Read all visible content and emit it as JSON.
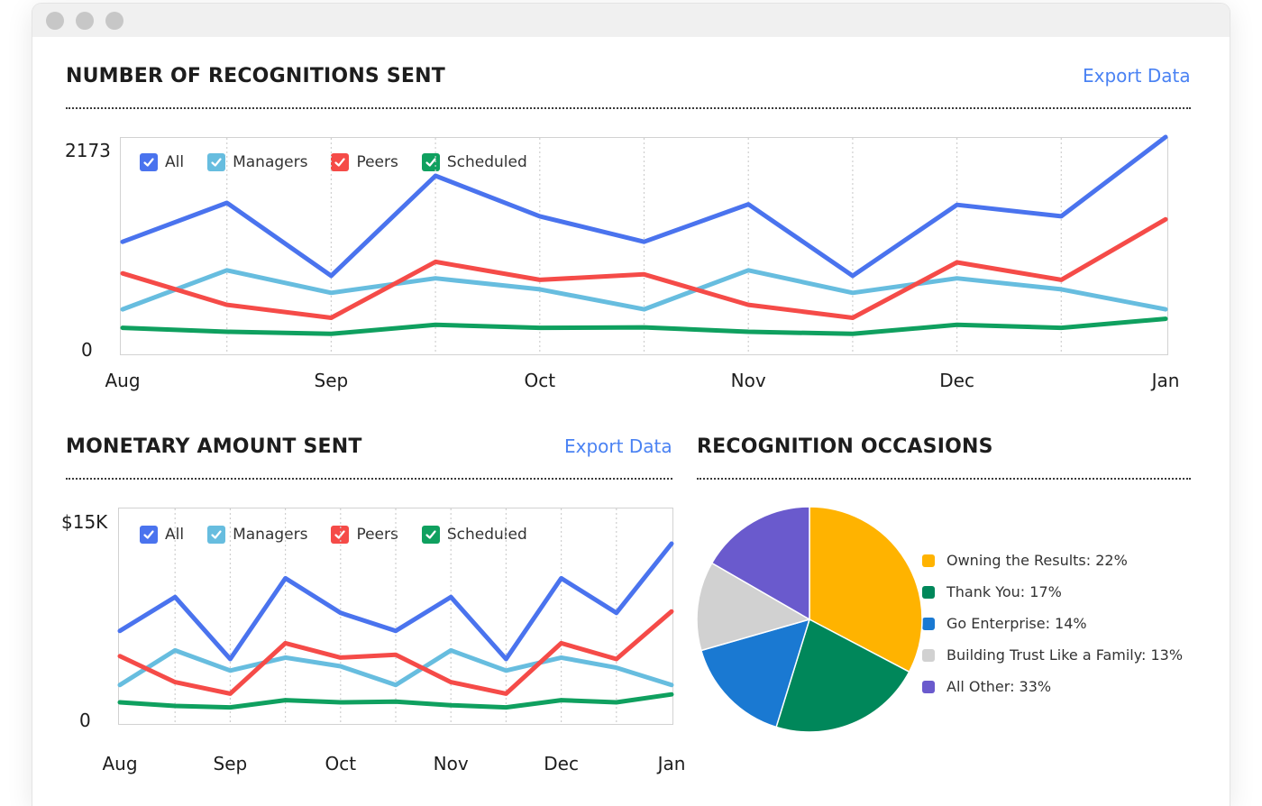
{
  "window": {
    "controls": [
      "close",
      "minimize",
      "maximize"
    ]
  },
  "colors": {
    "all": "#4a73ee",
    "managers": "#67bddf",
    "peers": "#f54b48",
    "scheduled": "#0fa05f",
    "link": "#4a82f3"
  },
  "recognitions": {
    "title": "NUMBER OF RECOGNITIONS SENT",
    "export_label": "Export Data",
    "y_max_label": "2173",
    "y_min_label": "0",
    "legend": [
      {
        "key": "all",
        "label": "All"
      },
      {
        "key": "managers",
        "label": "Managers"
      },
      {
        "key": "peers",
        "label": "Peers"
      },
      {
        "key": "scheduled",
        "label": "Scheduled"
      }
    ]
  },
  "monetary": {
    "title": "MONETARY AMOUNT SENT",
    "export_label": "Export Data",
    "y_max_label": "$15K",
    "y_min_label": "0",
    "legend": [
      {
        "key": "all",
        "label": "All"
      },
      {
        "key": "managers",
        "label": "Managers"
      },
      {
        "key": "peers",
        "label": "Peers"
      },
      {
        "key": "scheduled",
        "label": "Scheduled"
      }
    ]
  },
  "occasions": {
    "title": "RECOGNITION OCCASIONS",
    "legend": [
      {
        "label": "Owning the Results: 22%",
        "color": "#ffb300"
      },
      {
        "label": "Thank You: 17%",
        "color": "#00875a"
      },
      {
        "label": "Go Enterprise: 14%",
        "color": "#1a79d2"
      },
      {
        "label": "Building Trust Like a Family: 13%",
        "color": "#d1d1d1"
      },
      {
        "label": "All Other: 33%",
        "color": "#6a5acd"
      }
    ]
  },
  "chart_data": [
    {
      "type": "line",
      "title": "NUMBER OF RECOGNITIONS SENT",
      "x_tick_labels": [
        "Aug",
        "Sep",
        "Oct",
        "Nov",
        "Dec",
        "Jan"
      ],
      "x": [
        0,
        0.5,
        1,
        1.5,
        2,
        2.5,
        3,
        3.5,
        4,
        4.5,
        5
      ],
      "ylim": [
        0,
        2173
      ],
      "grid": "vertical dotted",
      "legend_position": "top-left",
      "series": [
        {
          "name": "All",
          "key": "all",
          "values": [
            1125,
            1515,
            785,
            1785,
            1380,
            1125,
            1500,
            785,
            1495,
            1380,
            2173
          ]
        },
        {
          "name": "Managers",
          "key": "managers",
          "values": [
            450,
            840,
            615,
            760,
            650,
            450,
            840,
            615,
            760,
            650,
            450
          ]
        },
        {
          "name": "Peers",
          "key": "peers",
          "values": [
            810,
            495,
            365,
            925,
            745,
            800,
            495,
            365,
            920,
            745,
            1350
          ]
        },
        {
          "name": "Scheduled",
          "key": "scheduled",
          "values": [
            265,
            225,
            205,
            295,
            265,
            270,
            225,
            205,
            295,
            265,
            355
          ]
        }
      ]
    },
    {
      "type": "line",
      "title": "MONETARY AMOUNT SENT",
      "x_tick_labels": [
        "Aug",
        "Sep",
        "Oct",
        "Nov",
        "Dec",
        "Jan"
      ],
      "x": [
        0,
        0.5,
        1,
        1.5,
        2,
        2.5,
        3,
        3.5,
        4,
        4.5,
        5
      ],
      "ylim": [
        0,
        15000
      ],
      "grid": "vertical dotted",
      "legend_position": "top-left",
      "series": [
        {
          "name": "All",
          "key": "all",
          "values": [
            6450,
            8800,
            4500,
            10100,
            7700,
            6450,
            8800,
            4500,
            10100,
            7700,
            12500
          ]
        },
        {
          "name": "Managers",
          "key": "managers",
          "values": [
            2700,
            5100,
            3700,
            4600,
            4000,
            2700,
            5100,
            3700,
            4600,
            3900,
            2700
          ]
        },
        {
          "name": "Peers",
          "key": "peers",
          "values": [
            4700,
            2900,
            2100,
            5600,
            4600,
            4800,
            2900,
            2100,
            5600,
            4500,
            7800
          ]
        },
        {
          "name": "Scheduled",
          "key": "scheduled",
          "values": [
            1500,
            1250,
            1150,
            1650,
            1500,
            1550,
            1300,
            1150,
            1650,
            1500,
            2050
          ]
        }
      ]
    },
    {
      "type": "pie",
      "title": "RECOGNITION OCCASIONS",
      "categories": [
        "Owning the Results",
        "Thank You",
        "Go Enterprise",
        "Building Trust Like a Family",
        "All Other"
      ],
      "values": [
        22,
        17,
        14,
        13,
        33
      ],
      "slice_order_clockwise_from_top": [
        "All Other",
        "Thank You",
        "Go Enterprise",
        "Building Trust Like a Family",
        "Owning the Results"
      ],
      "colors": [
        "#ffb300",
        "#00875a",
        "#1a79d2",
        "#d1d1d1",
        "#6a5acd"
      ],
      "legend_position": "right"
    }
  ]
}
